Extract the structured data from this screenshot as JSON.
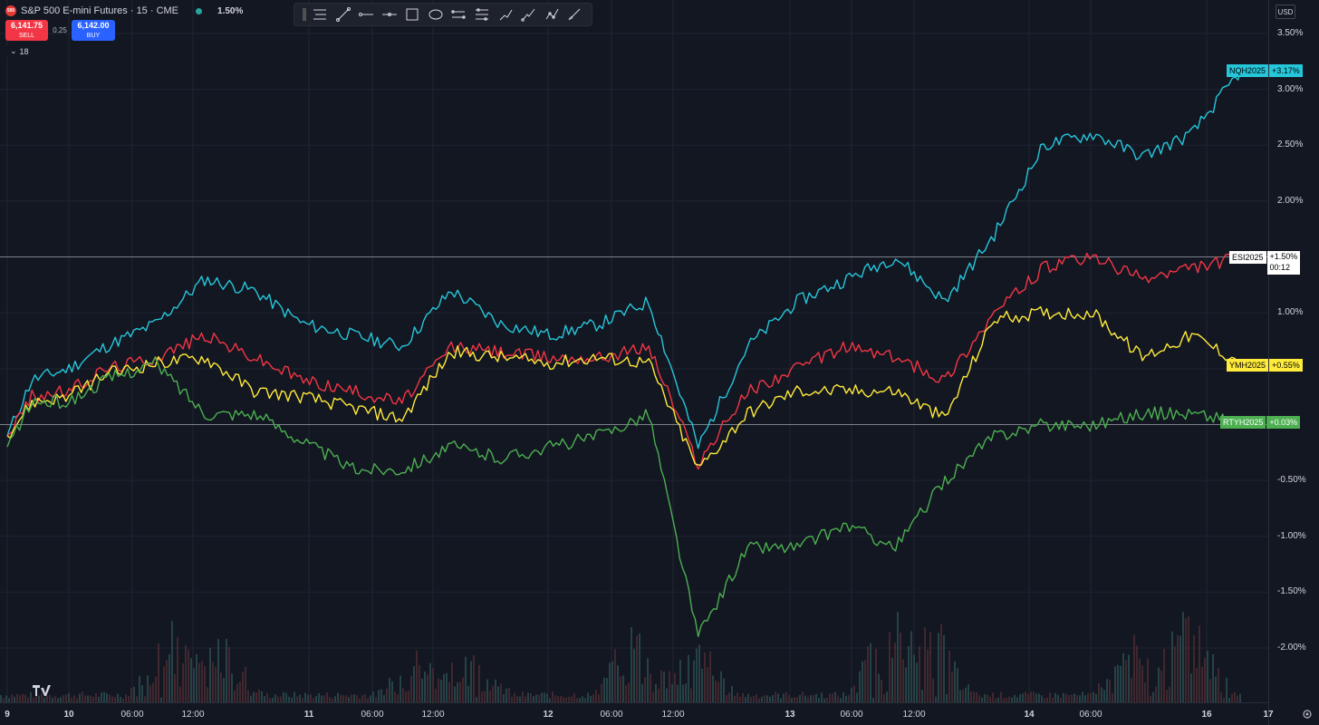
{
  "header": {
    "symbol_badge": "500",
    "title": "S&P 500 E-mini Futures · 15 · CME",
    "change": "1.50%"
  },
  "trade": {
    "sell_price": "6,141.75",
    "sell_label": "SELL",
    "spread": "0.25",
    "buy_price": "6,142.00",
    "buy_label": "BUY",
    "collapse_count": "18"
  },
  "toolbar": {
    "tools": [
      "horizontal-lines-icon",
      "trend-line-icon",
      "horizontal-ray-icon",
      "horizontal-line-icon",
      "rectangle-icon",
      "ellipse-icon",
      "parallel-channel-icon",
      "regression-channel-icon",
      "fib-retracement-icon",
      "path-icon",
      "polyline-icon",
      "brush-icon"
    ]
  },
  "price_axis": {
    "currency": "USD",
    "ticks": [
      "3.50%",
      "3.00%",
      "2.50%",
      "2.00%",
      "1.00%",
      "-0.50%",
      "-1.00%",
      "-1.50%",
      "-2.00%"
    ]
  },
  "time_axis": {
    "ticks": [
      {
        "label": "9",
        "major": true
      },
      {
        "label": "10",
        "major": true
      },
      {
        "label": "06:00",
        "major": false
      },
      {
        "label": "12:00",
        "major": false
      },
      {
        "label": "11",
        "major": true
      },
      {
        "label": "06:00",
        "major": false
      },
      {
        "label": "12:00",
        "major": false
      },
      {
        "label": "12",
        "major": true
      },
      {
        "label": "06:00",
        "major": false
      },
      {
        "label": "12:00",
        "major": false
      },
      {
        "label": "13",
        "major": true
      },
      {
        "label": "06:00",
        "major": false
      },
      {
        "label": "12:00",
        "major": false
      },
      {
        "label": "14",
        "major": true
      },
      {
        "label": "06:00",
        "major": false
      },
      {
        "label": "16",
        "major": true
      },
      {
        "label": "17",
        "major": true
      }
    ]
  },
  "series_tags": [
    {
      "name": "NQH2025",
      "value": "+3.17%",
      "color": "#26c6da",
      "text": "#000000"
    },
    {
      "name": "ESI2025",
      "value": "+1.50%",
      "countdown": "00:12",
      "color": "#ffffff",
      "text": "#000000"
    },
    {
      "name": "YMH2025",
      "value": "+0.55%",
      "color": "#ffeb3b",
      "text": "#000000"
    },
    {
      "name": "RTYH2025",
      "value": "+0.03%",
      "color": "#4caf50",
      "text": "#ffffff"
    }
  ],
  "chart_data": {
    "type": "line",
    "ylim": [
      -2.5,
      3.7
    ],
    "y_unit": "%",
    "grid": true,
    "reference_lines": [
      1.5,
      0.0
    ],
    "x": [
      0,
      2,
      5,
      8,
      12,
      16,
      20,
      24,
      28,
      32,
      36,
      40,
      44,
      48,
      52,
      56,
      60,
      64,
      68,
      72,
      76,
      80,
      84,
      88,
      92,
      96,
      100
    ],
    "series": [
      {
        "name": "NQH2025",
        "color": "#26c6da",
        "values": [
          -0.1,
          0.4,
          0.5,
          0.7,
          0.9,
          1.3,
          1.2,
          0.9,
          0.8,
          0.7,
          1.2,
          0.9,
          0.8,
          0.9,
          1.1,
          -0.2,
          0.7,
          1.1,
          1.3,
          1.5,
          1.1,
          1.7,
          2.5,
          2.6,
          2.4,
          2.6,
          3.17
        ]
      },
      {
        "name": "ESI2025",
        "color": "#f23645",
        "values": [
          -0.1,
          0.25,
          0.3,
          0.5,
          0.6,
          0.8,
          0.6,
          0.4,
          0.3,
          0.2,
          0.7,
          0.65,
          0.6,
          0.6,
          0.7,
          -0.35,
          0.3,
          0.5,
          0.7,
          0.6,
          0.4,
          1.0,
          1.4,
          1.5,
          1.3,
          1.4,
          1.5
        ]
      },
      {
        "name": "YMH2025",
        "color": "#ffeb3b",
        "values": [
          -0.1,
          0.2,
          0.25,
          0.45,
          0.55,
          0.6,
          0.3,
          0.25,
          0.15,
          0.05,
          0.65,
          0.6,
          0.55,
          0.6,
          0.55,
          -0.4,
          0.1,
          0.3,
          0.3,
          0.3,
          0.05,
          0.95,
          1.0,
          1.0,
          0.6,
          0.8,
          0.55
        ]
      },
      {
        "name": "RTYH2025",
        "color": "#4caf50",
        "values": [
          -0.2,
          0.2,
          0.2,
          0.4,
          0.55,
          0.1,
          0.1,
          -0.15,
          -0.4,
          -0.4,
          -0.2,
          -0.3,
          -0.2,
          -0.1,
          0.1,
          -1.9,
          -1.1,
          -1.1,
          -0.9,
          -1.1,
          -0.5,
          -0.1,
          0.0,
          0.0,
          0.1,
          0.1,
          0.03
        ]
      }
    ]
  }
}
